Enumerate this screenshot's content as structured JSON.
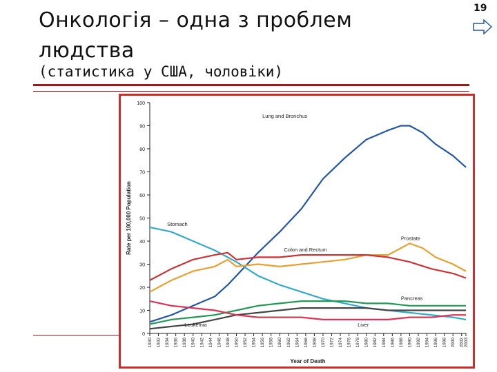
{
  "slide": {
    "title": "Онкологія – одна з проблем людства",
    "subtitle": "(статистика у США, чоловіки)",
    "page_number": "19",
    "nav_icon": "next-slide-arrow-icon",
    "accent_color": "#9b1b1b",
    "frame_color": "#c9302c"
  },
  "chart_data": {
    "type": "line",
    "xlabel": "Year of Death",
    "ylabel": "Rate per 100,000 Population",
    "xlim": [
      1930,
      2003
    ],
    "ylim": [
      0,
      100
    ],
    "yticks": [
      0,
      10,
      20,
      30,
      40,
      50,
      60,
      70,
      80,
      90,
      100
    ],
    "xticks": [
      "1930",
      "1932",
      "1934",
      "1936",
      "1938",
      "1940",
      "1942",
      "1944",
      "1946",
      "1948",
      "1950",
      "1952",
      "1954",
      "1956",
      "1958",
      "1960",
      "1962",
      "1964",
      "1966",
      "1968",
      "1970",
      "1972",
      "1974",
      "1976",
      "1978",
      "1980",
      "1982",
      "1984",
      "1986",
      "1988",
      "1990",
      "1992",
      "1994",
      "1996",
      "1998",
      "2000",
      "2002",
      "2003"
    ],
    "grid": false,
    "series": [
      {
        "name": "Lung and Bronchus",
        "color": "#2255aa",
        "x": [
          1930,
          1935,
          1940,
          1945,
          1948,
          1950,
          1955,
          1960,
          1965,
          1970,
          1975,
          1980,
          1985,
          1988,
          1990,
          1993,
          1996,
          2000,
          2003
        ],
        "y": [
          5,
          8,
          12,
          16,
          21,
          25,
          35,
          44,
          54,
          67,
          76,
          84,
          88,
          90,
          90,
          87,
          82,
          77,
          72
        ]
      },
      {
        "name": "Stomach",
        "color": "#33aacc",
        "x": [
          1930,
          1935,
          1940,
          1945,
          1950,
          1955,
          1960,
          1965,
          1970,
          1975,
          1980,
          1985,
          1990,
          1995,
          2000,
          2003
        ],
        "y": [
          46,
          44,
          40,
          36,
          31,
          25,
          21,
          18,
          15,
          13,
          11,
          10,
          9,
          8,
          7,
          6
        ]
      },
      {
        "name": "Prostate",
        "color": "#e8a030",
        "x": [
          1930,
          1935,
          1940,
          1945,
          1948,
          1950,
          1955,
          1960,
          1965,
          1970,
          1975,
          1980,
          1985,
          1988,
          1990,
          1993,
          1996,
          2000,
          2003
        ],
        "y": [
          18,
          23,
          27,
          29,
          32,
          29,
          30,
          29,
          30,
          31,
          32,
          34,
          34,
          37,
          39,
          37,
          33,
          30,
          27
        ]
      },
      {
        "name": "Colon and Rectum",
        "color": "#cc3333",
        "x": [
          1930,
          1935,
          1940,
          1945,
          1948,
          1950,
          1955,
          1960,
          1965,
          1970,
          1975,
          1980,
          1985,
          1990,
          1995,
          2000,
          2003
        ],
        "y": [
          23,
          28,
          32,
          34,
          35,
          32,
          33,
          33,
          34,
          34,
          34,
          34,
          33,
          31,
          28,
          26,
          24
        ]
      },
      {
        "name": "Pancreas",
        "color": "#229955",
        "x": [
          1930,
          1935,
          1940,
          1945,
          1950,
          1955,
          1960,
          1965,
          1970,
          1975,
          1980,
          1985,
          1990,
          1995,
          2000,
          2003
        ],
        "y": [
          4,
          6,
          7,
          8,
          10,
          12,
          13,
          14,
          14,
          14,
          13,
          13,
          12,
          12,
          12,
          12
        ]
      },
      {
        "name": "Leukemia",
        "color": "#444444",
        "x": [
          1930,
          1935,
          1940,
          1945,
          1950,
          1955,
          1960,
          1965,
          1970,
          1975,
          1980,
          1985,
          1990,
          1995,
          2000,
          2003
        ],
        "y": [
          2,
          3,
          4,
          6,
          8,
          9,
          10,
          11,
          11,
          11,
          11,
          10,
          10,
          10,
          10,
          10
        ]
      },
      {
        "name": "Liver",
        "color": "#dd3355",
        "x": [
          1930,
          1935,
          1940,
          1945,
          1950,
          1955,
          1960,
          1965,
          1970,
          1975,
          1980,
          1985,
          1990,
          1995,
          2000,
          2003
        ],
        "y": [
          14,
          12,
          11,
          10,
          8,
          7,
          7,
          7,
          6,
          6,
          6,
          6,
          7,
          7,
          8,
          8
        ]
      }
    ],
    "labels": [
      {
        "text": "Lung and Bronchus",
        "series": 0
      },
      {
        "text": "Stomach",
        "series": 1
      },
      {
        "text": "Prostate",
        "series": 2
      },
      {
        "text": "Colon and Rectum",
        "series": 3
      },
      {
        "text": "Pancreas",
        "series": 4
      },
      {
        "text": "Leukemia",
        "series": 5
      },
      {
        "text": "Liver",
        "series": 6
      }
    ]
  }
}
